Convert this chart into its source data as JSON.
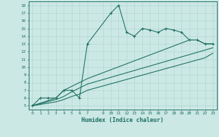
{
  "xlabel": "Humidex (Indice chaleur)",
  "bg_color": "#cce8e4",
  "line_color": "#1a6e62",
  "grid_color": "#b0d8d0",
  "xlim": [
    -0.5,
    23.5
  ],
  "ylim": [
    4.5,
    18.5
  ],
  "xticks": [
    0,
    1,
    2,
    3,
    4,
    5,
    6,
    7,
    9,
    10,
    11,
    12,
    13,
    14,
    15,
    16,
    17,
    18,
    19,
    20,
    21,
    22,
    23
  ],
  "yticks": [
    5,
    6,
    7,
    8,
    9,
    10,
    11,
    12,
    13,
    14,
    15,
    16,
    17,
    18
  ],
  "line1_x": [
    0,
    1,
    2,
    3,
    4,
    5,
    6,
    7,
    10,
    11,
    12,
    13,
    14,
    15,
    16,
    17,
    18,
    19,
    20,
    21,
    22,
    23
  ],
  "line1_y": [
    5,
    6,
    6,
    6,
    7,
    7,
    6,
    13,
    17,
    18,
    14.5,
    14,
    15,
    14.8,
    14.5,
    15,
    14.8,
    14.5,
    13.5,
    13.5,
    13,
    13
  ],
  "line2_x": [
    0,
    3,
    4,
    5,
    6,
    7,
    20,
    21,
    22,
    23
  ],
  "line2_y": [
    5,
    6,
    7,
    7.5,
    8,
    8.5,
    13.5,
    13.5,
    13,
    13
  ],
  "line3_x": [
    0,
    3,
    4,
    5,
    6,
    7,
    22,
    23
  ],
  "line3_y": [
    5,
    5.8,
    6.2,
    6.8,
    7.3,
    7.8,
    12.2,
    12.5
  ],
  "line4_x": [
    0,
    3,
    4,
    5,
    6,
    7,
    22,
    23
  ],
  "line4_y": [
    5,
    5.5,
    5.8,
    6.2,
    6.5,
    7,
    11.2,
    11.8
  ]
}
